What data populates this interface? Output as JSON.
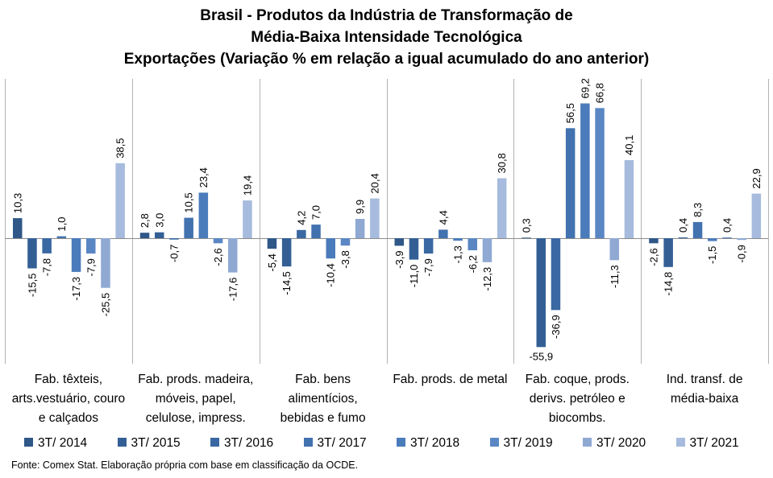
{
  "chart_data": {
    "type": "bar",
    "title_lines": [
      "Brasil - Produtos da Indústria de Transformação de",
      "Média-Baixa Intensidade Tecnológica",
      "Exportações (Variação % em relação a igual acumulado do ano anterior)"
    ],
    "categories": [
      [
        "Fab. têxteis,",
        "arts.vestuário, couro",
        "e calçados"
      ],
      [
        "Fab. prods. madeira,",
        "móveis, papel,",
        "celulose, impress."
      ],
      [
        "Fab. bens",
        "alimentícios,",
        "bebidas e fumo"
      ],
      [
        "Fab. prods. de metal"
      ],
      [
        "Fab. coque, prods.",
        "derivs. petróleo e",
        "biocombs."
      ],
      [
        "Ind. transf. de",
        "média-baixa"
      ]
    ],
    "series": [
      {
        "name": "3T/ 2014",
        "color": "#2f5788",
        "values": [
          10.3,
          2.8,
          -5.4,
          -3.9,
          0.3,
          -2.6
        ],
        "labels": [
          "10,3",
          "2,8",
          "-5,4",
          "-3,9",
          "0,3",
          "-2,6"
        ]
      },
      {
        "name": "3T/ 2015",
        "color": "#335f95",
        "values": [
          -15.5,
          3.0,
          -14.5,
          -11.0,
          -55.9,
          -14.8
        ],
        "labels": [
          "-15,5",
          "3,0",
          "-14,5",
          "-11,0",
          "-55,9",
          "-14,8"
        ]
      },
      {
        "name": "3T/ 2016",
        "color": "#3a68a2",
        "values": [
          -7.8,
          -0.7,
          4.2,
          -7.9,
          -36.9,
          0.4
        ],
        "labels": [
          "-7,8",
          "-0,7",
          "4,2",
          "-7,9",
          "-36,9",
          "0,4"
        ]
      },
      {
        "name": "3T/ 2017",
        "color": "#4272af",
        "values": [
          1.0,
          10.5,
          7.0,
          4.4,
          56.5,
          8.3
        ],
        "labels": [
          "1,0",
          "10,5",
          "7,0",
          "4,4",
          "56,5",
          "8,3"
        ]
      },
      {
        "name": "3T/ 2018",
        "color": "#4a7bbb",
        "values": [
          -17.3,
          23.4,
          -10.4,
          -1.3,
          69.2,
          -1.5
        ],
        "labels": [
          "-17,3",
          "23,4",
          "-10,4",
          "-1,3",
          "69,2",
          "-1,5"
        ]
      },
      {
        "name": "3T/ 2019",
        "color": "#5a87c4",
        "values": [
          -7.9,
          -2.6,
          -3.8,
          -6.2,
          66.8,
          0.4
        ],
        "labels": [
          "-7,9",
          "-2,6",
          "-3,8",
          "-6,2",
          "66,8",
          "0,4"
        ]
      },
      {
        "name": "3T/ 2020",
        "color": "#8fa9d3",
        "values": [
          -25.5,
          -17.6,
          9.9,
          -12.3,
          -11.3,
          -0.9
        ],
        "labels": [
          "-25,5",
          "-17,6",
          "9,9",
          "-12,3",
          "-11,3",
          "-0,9"
        ]
      },
      {
        "name": "3T/ 2021",
        "color": "#a6bbdd",
        "values": [
          38.5,
          19.4,
          20.4,
          30.8,
          40.1,
          22.9
        ],
        "labels": [
          "38,5",
          "19,4",
          "20,4",
          "30,8",
          "40,1",
          "22,9"
        ]
      }
    ],
    "ylim": [
      -62,
      82
    ],
    "grid": false,
    "legend_position": "bottom"
  },
  "source_note": "Fonte: Comex Stat. Elaboração própria com base em classificação da OCDE."
}
